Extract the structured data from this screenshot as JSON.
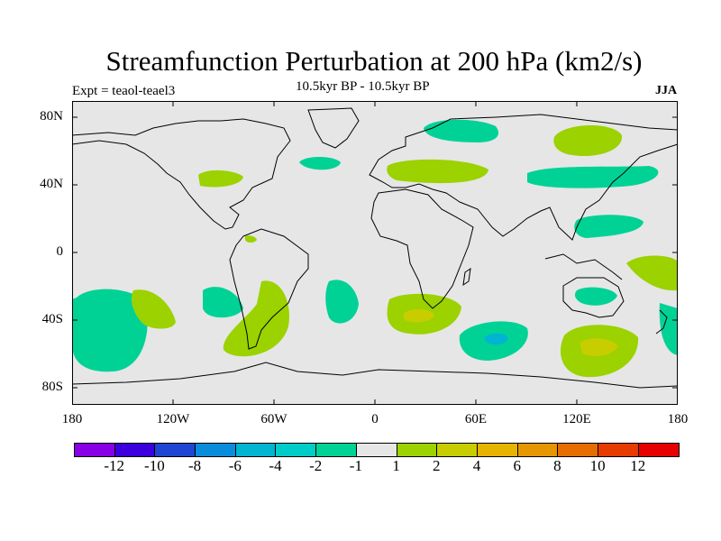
{
  "title": "Streamfunction Perturbation at 200 hPa (km2/s)",
  "expt_label": "Expt = teaol-teael3",
  "subtitle": "10.5kyr BP - 10.5kyr BP",
  "season": "JJA",
  "map": {
    "background_color": "#e6e6e6",
    "lat_labels": [
      "80N",
      "40N",
      "0",
      "40S",
      "80S"
    ],
    "lon_labels": [
      "180",
      "120W",
      "60W",
      "0",
      "60E",
      "120E",
      "180"
    ]
  },
  "colorbar": {
    "colors": [
      "#8a00e6",
      "#3c00dc",
      "#1e46d2",
      "#0a8cdc",
      "#00b4d2",
      "#00cdc8",
      "#00d296",
      "#e6e6e6",
      "#9bd200",
      "#c8cd00",
      "#e6b400",
      "#e69600",
      "#e66e00",
      "#e63c00",
      "#e60000"
    ],
    "labels": [
      "-12",
      "-10",
      "-8",
      "-6",
      "-4",
      "-2",
      "-1",
      "1",
      "2",
      "4",
      "6",
      "8",
      "10",
      "12"
    ]
  }
}
